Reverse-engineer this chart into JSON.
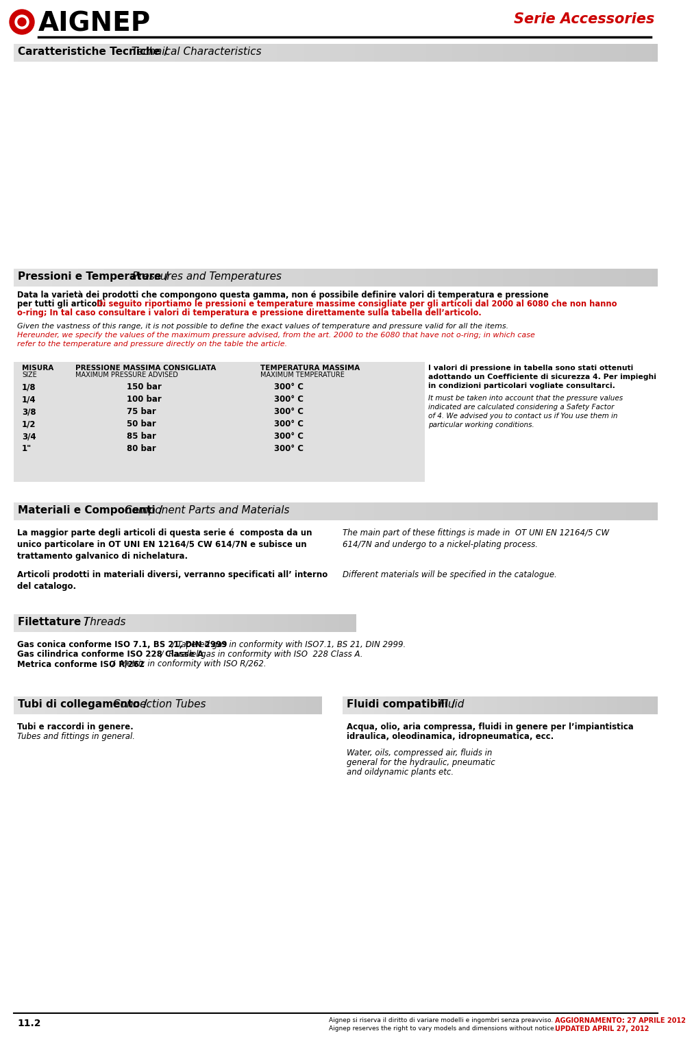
{
  "page_bg": "#ffffff",
  "red_color": "#cc0000",
  "section_bg": "#d0d0d0",
  "section_bg2": "#c8c8c8",
  "header": {
    "logo_main": "AIGNEP",
    "serie": "Serie Accessories"
  },
  "sec1": {
    "bold": "Caratteristiche Tecniche /",
    "italic": " Technical Characteristics"
  },
  "sec2": {
    "bold": "Pressioni e Temperature /",
    "italic": " Pressures and Temperatures"
  },
  "sec3": {
    "bold": "Materiali e Componenti /",
    "italic": " Component Parts and Materials"
  },
  "sec4": {
    "bold": "Filettature /",
    "italic": " Threads"
  },
  "sec5": {
    "bold": "Tubi di collegamento /",
    "italic": " Connection Tubes"
  },
  "sec6": {
    "bold": "Fluidi compatibili /",
    "italic": " Fluid"
  },
  "p_intro_line1": "Data la varietà dei prodotti che compongono questa gamma, non é possibile definire valori di temperatura e pressione",
  "p_intro_line2_black": "per tutti gli articoli.",
  "p_intro_line2_red": " Di seguito riportiamo le pressioni e temperature massime consigliate per gli articoli dal 2000 al 6080 che non hanno",
  "p_intro_line3": "o-ring; In tal caso consultare i valori di temperatura e pressione direttamente sulla tabella dell’articolo.",
  "p_en_line1": "Given the vastness of this range, it is not possible to define the exact values of temperature and pressure valid for all the items.",
  "p_en_line2": "Hereunder, we specify the values of the maximum pressure advised, from the art. 2000 to the 6080 that have not o-ring; in which case",
  "p_en_line3": "refer to the temperature and pressure directly on the table the article.",
  "tbl_h1": "MISURA",
  "tbl_h1s": "SIZE",
  "tbl_h2": "PRESSIONE MASSIMA CONSIGLIATA",
  "tbl_h2s": "MAXIMUM PRESSURE ADVISED",
  "tbl_h3": "TEMPERATURA MASSIMA",
  "tbl_h3s": "MAXIMUM TEMPERATURE",
  "tbl_sizes": [
    "1/8",
    "1/4",
    "3/8",
    "1/2",
    "3/4",
    "1\""
  ],
  "tbl_press": [
    "150 bar",
    "100 bar",
    "75 bar",
    "50 bar",
    "85 bar",
    "80 bar"
  ],
  "tbl_temps": [
    "300° C",
    "300° C",
    "300° C",
    "300° C",
    "300° C",
    "300° C"
  ],
  "tbl_note_it": [
    "I valori di pressione in tabella sono stati ottenuti",
    "adottando un Coefficiente di sicurezza 4. Per impieghi",
    "in condizioni particolari vogliate consultarci."
  ],
  "tbl_note_en": [
    "It must be taken into account that the pressure values",
    "indicated are calculated considering a Safety Factor",
    "of 4. We advised you to contact us if You use them in",
    "particular working conditions."
  ],
  "mat_it": [
    "La maggior parte degli articoli di questa serie é  composta da un",
    "unico particolare in OT UNI EN 12164/5 CW 614/7N e subisce un",
    "trattamento galvanico di nichelatura."
  ],
  "mat_en": [
    "The main part of these fittings is made in  OT UNI EN 12164/5 CW",
    "614/7N and undergo to a nickel-plating process."
  ],
  "mat2_it": [
    "Articoli prodotti in materiali diversi, verranno specificati all’ interno",
    "del catalogo."
  ],
  "mat2_en": "Different materials will be specified in the catalogue.",
  "thr1b": "Gas conica conforme ISO 7.1, BS 21, DIN 2999",
  "thr1i": " / Tapered gas in conformity with ISO7.1, BS 21, DIN 2999.",
  "thr2b": "Gas cilindrica conforme ISO 228 Classe A",
  "thr2i": "  /  Parallel gas in conformity with ISO  228 Class A.",
  "thr3b": "Metrica conforme ISO R/262",
  "thr3i": "  /  Metric in conformity with ISO R/262.",
  "tubi_b": "Tubi e raccordi in genere.",
  "tubi_i": "Tubes and fittings in general.",
  "fluidi_b": [
    "Acqua, olio, aria compressa, fluidi in genere per l’impiantistica",
    "idraulica, oleodinamica, idropneumatica, ecc."
  ],
  "fluidi_i": [
    "Water, oils, compressed air, fluids in",
    "general for the hydraulic, pneumatic",
    "and oildynamic plants etc."
  ],
  "footer_num": "11.2",
  "footer_it1": "Aignep si riserva il diritto di variare modelli e ingombri senza preavviso.",
  "footer_it2": "Aignep reserves the right to vary models and dimensions without notice.",
  "footer_date1": "AGGIORNAMENTO: 27 APRILE 2012",
  "footer_date2": "UPDATED APRIL 27, 2012"
}
